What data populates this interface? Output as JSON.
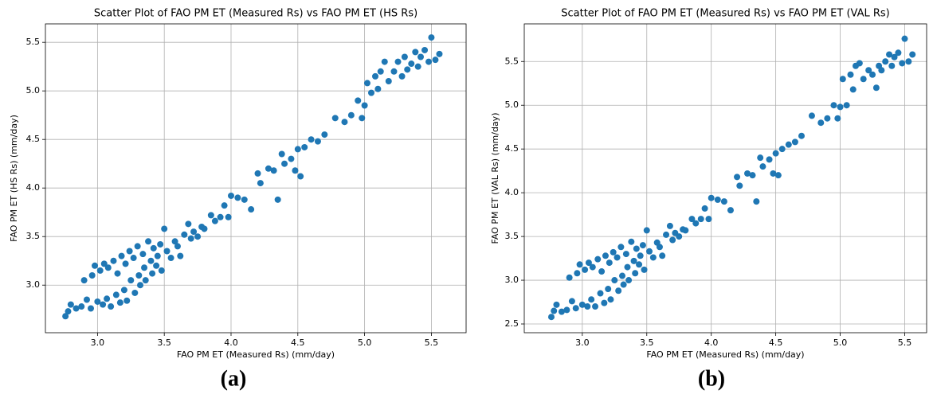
{
  "chart_data": [
    {
      "type": "scatter",
      "title": "Scatter Plot of FAO PM ET (Measured Rs) vs FAO PM ET (HS Rs)",
      "xlabel": "FAO PM ET (Measured Rs) (mm/day)",
      "ylabel": "FAO PM ET (HS Rs) (mm/day)",
      "panel_label": "(a)",
      "color": "#1f77b4",
      "grid": true,
      "xlim": [
        2.61,
        5.76
      ],
      "ylim": [
        2.51,
        5.69
      ],
      "xticks": [
        {
          "value": 3,
          "label": "3.0"
        },
        {
          "value": 3.5,
          "label": "3.5"
        },
        {
          "value": 4,
          "label": "4.0"
        },
        {
          "value": 4.5,
          "label": "4.5"
        },
        {
          "value": 5,
          "label": "5.0"
        },
        {
          "value": 5.5,
          "label": "5.5"
        }
      ],
      "yticks": [
        {
          "value": 3,
          "label": "3.0"
        },
        {
          "value": 3.5,
          "label": "3.5"
        },
        {
          "value": 4,
          "label": "4.0"
        },
        {
          "value": 4.5,
          "label": "4.5"
        },
        {
          "value": 5,
          "label": "5.0"
        },
        {
          "value": 5.5,
          "label": "5.5"
        }
      ],
      "x": [
        2.76,
        2.78,
        2.8,
        2.84,
        2.88,
        2.9,
        2.92,
        2.95,
        2.96,
        2.98,
        3.0,
        3.02,
        3.04,
        3.05,
        3.07,
        3.08,
        3.1,
        3.12,
        3.14,
        3.15,
        3.17,
        3.18,
        3.2,
        3.21,
        3.22,
        3.24,
        3.25,
        3.27,
        3.28,
        3.3,
        3.31,
        3.32,
        3.34,
        3.35,
        3.36,
        3.38,
        3.4,
        3.41,
        3.42,
        3.44,
        3.45,
        3.47,
        3.48,
        3.5,
        3.52,
        3.55,
        3.58,
        3.6,
        3.62,
        3.65,
        3.68,
        3.7,
        3.72,
        3.75,
        3.78,
        3.8,
        3.85,
        3.88,
        3.92,
        3.95,
        3.98,
        4.0,
        4.05,
        4.1,
        4.15,
        4.2,
        4.22,
        4.28,
        4.32,
        4.35,
        4.38,
        4.4,
        4.45,
        4.48,
        4.5,
        4.52,
        4.55,
        4.6,
        4.65,
        4.7,
        4.78,
        4.85,
        4.9,
        4.95,
        4.98,
        5.0,
        5.02,
        5.05,
        5.08,
        5.1,
        5.12,
        5.15,
        5.18,
        5.22,
        5.25,
        5.28,
        5.3,
        5.32,
        5.35,
        5.38,
        5.4,
        5.42,
        5.45,
        5.48,
        5.5,
        5.53,
        5.56
      ],
      "y": [
        2.68,
        2.73,
        2.8,
        2.76,
        2.78,
        3.05,
        2.85,
        2.76,
        3.1,
        3.2,
        2.83,
        3.15,
        2.8,
        3.22,
        2.86,
        3.18,
        2.78,
        3.25,
        2.9,
        3.12,
        2.82,
        3.3,
        2.95,
        3.22,
        2.84,
        3.35,
        3.05,
        3.28,
        2.92,
        3.4,
        3.1,
        3.0,
        3.32,
        3.18,
        3.05,
        3.45,
        3.25,
        3.12,
        3.38,
        3.2,
        3.3,
        3.42,
        3.15,
        3.58,
        3.35,
        3.28,
        3.45,
        3.4,
        3.3,
        3.52,
        3.63,
        3.48,
        3.55,
        3.5,
        3.6,
        3.58,
        3.72,
        3.66,
        3.7,
        3.82,
        3.7,
        3.92,
        3.9,
        3.88,
        3.78,
        4.15,
        4.05,
        4.2,
        4.18,
        3.88,
        4.35,
        4.25,
        4.3,
        4.18,
        4.4,
        4.12,
        4.42,
        4.5,
        4.48,
        4.55,
        4.72,
        4.68,
        4.75,
        4.9,
        4.72,
        4.85,
        5.08,
        4.98,
        5.15,
        5.02,
        5.2,
        5.3,
        5.1,
        5.2,
        5.3,
        5.15,
        5.35,
        5.22,
        5.28,
        5.4,
        5.25,
        5.35,
        5.42,
        5.3,
        5.55,
        5.32,
        5.38
      ]
    },
    {
      "type": "scatter",
      "title": "Scatter Plot of FAO PM ET (Measured Rs) vs FAO PM ET (VAL Rs)",
      "xlabel": "FAO PM ET (Measured Rs) (mm/day)",
      "ylabel": "FAO PM ET (VAL Rs) (mm/day)",
      "panel_label": "(b)",
      "color": "#1f77b4",
      "grid": true,
      "xlim": [
        2.55,
        5.67
      ],
      "ylim": [
        2.4,
        5.93
      ],
      "xticks": [
        {
          "value": 3,
          "label": "3.0"
        },
        {
          "value": 3.5,
          "label": "3.5"
        },
        {
          "value": 4,
          "label": "4.0"
        },
        {
          "value": 4.5,
          "label": "4.5"
        },
        {
          "value": 5,
          "label": "5.0"
        },
        {
          "value": 5.5,
          "label": "5.5"
        }
      ],
      "yticks": [
        {
          "value": 2.5,
          "label": "2.5"
        },
        {
          "value": 3,
          "label": "3.0"
        },
        {
          "value": 3.5,
          "label": "3.5"
        },
        {
          "value": 4,
          "label": "4.0"
        },
        {
          "value": 4.5,
          "label": "4.5"
        },
        {
          "value": 5,
          "label": "5.0"
        },
        {
          "value": 5.5,
          "label": "5.5"
        }
      ],
      "x": [
        2.76,
        2.78,
        2.8,
        2.84,
        2.88,
        2.9,
        2.92,
        2.95,
        2.96,
        2.98,
        3.0,
        3.02,
        3.04,
        3.05,
        3.07,
        3.08,
        3.1,
        3.12,
        3.14,
        3.15,
        3.17,
        3.18,
        3.2,
        3.21,
        3.22,
        3.24,
        3.25,
        3.27,
        3.28,
        3.3,
        3.31,
        3.32,
        3.34,
        3.35,
        3.36,
        3.38,
        3.4,
        3.41,
        3.42,
        3.44,
        3.45,
        3.47,
        3.48,
        3.5,
        3.52,
        3.55,
        3.58,
        3.6,
        3.62,
        3.65,
        3.68,
        3.7,
        3.72,
        3.75,
        3.78,
        3.8,
        3.85,
        3.88,
        3.92,
        3.95,
        3.98,
        4.0,
        4.05,
        4.1,
        4.15,
        4.2,
        4.22,
        4.28,
        4.32,
        4.35,
        4.38,
        4.4,
        4.45,
        4.48,
        4.5,
        4.52,
        4.55,
        4.6,
        4.65,
        4.7,
        4.78,
        4.85,
        4.9,
        4.95,
        4.98,
        5.0,
        5.02,
        5.05,
        5.08,
        5.1,
        5.12,
        5.15,
        5.18,
        5.22,
        5.25,
        5.28,
        5.3,
        5.32,
        5.35,
        5.38,
        5.4,
        5.42,
        5.45,
        5.48,
        5.5,
        5.53,
        5.56
      ],
      "y": [
        2.58,
        2.65,
        2.72,
        2.64,
        2.66,
        3.03,
        2.76,
        2.68,
        3.08,
        3.18,
        2.72,
        3.12,
        2.7,
        3.2,
        2.78,
        3.15,
        2.7,
        3.24,
        2.85,
        3.1,
        2.74,
        3.28,
        2.9,
        3.2,
        2.78,
        3.32,
        3.0,
        3.26,
        2.88,
        3.38,
        3.05,
        2.95,
        3.3,
        3.15,
        3.0,
        3.44,
        3.22,
        3.08,
        3.36,
        3.18,
        3.28,
        3.4,
        3.12,
        3.57,
        3.33,
        3.26,
        3.43,
        3.38,
        3.28,
        3.52,
        3.62,
        3.46,
        3.54,
        3.5,
        3.58,
        3.57,
        3.7,
        3.65,
        3.7,
        3.82,
        3.7,
        3.94,
        3.92,
        3.9,
        3.8,
        4.18,
        4.08,
        4.22,
        4.2,
        3.9,
        4.4,
        4.3,
        4.38,
        4.22,
        4.45,
        4.2,
        4.5,
        4.55,
        4.58,
        4.65,
        4.88,
        4.8,
        4.85,
        5.0,
        4.85,
        4.98,
        5.3,
        5.0,
        5.35,
        5.18,
        5.45,
        5.48,
        5.3,
        5.4,
        5.35,
        5.2,
        5.45,
        5.4,
        5.5,
        5.58,
        5.45,
        5.55,
        5.6,
        5.48,
        5.76,
        5.5,
        5.58
      ]
    }
  ]
}
